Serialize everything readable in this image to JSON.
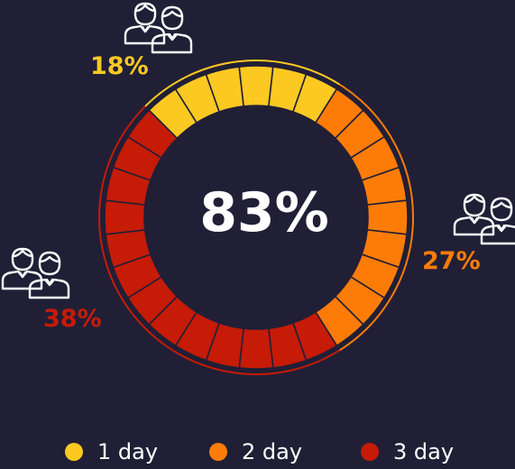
{
  "chart_data": {
    "type": "donut",
    "center_label": "83%",
    "categories": [
      "1 day",
      "2 day",
      "3 day"
    ],
    "values": [
      18,
      27,
      38
    ],
    "value_labels": [
      "18%",
      "27%",
      "38%"
    ],
    "colors": [
      "#fcc922",
      "#fd7c08",
      "#c51b07"
    ],
    "legend_position": "bottom",
    "segments_per_ring": 28
  },
  "icons": [
    "people-icon",
    "people-icon",
    "people-icon"
  ],
  "background": "#211f36"
}
